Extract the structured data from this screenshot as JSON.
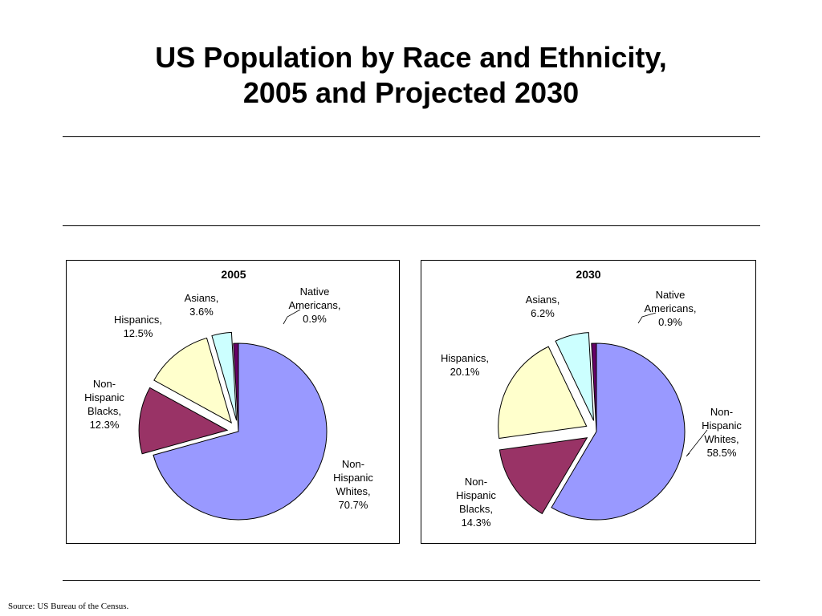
{
  "slide": {
    "title_line1": "US Population by Race and Ethnicity,",
    "title_line2": "2005 and Projected 2030",
    "source": "Source: US Bureau of the Census."
  },
  "chart_data": [
    {
      "type": "pie",
      "title": "2005",
      "slices": [
        {
          "label": [
            "Non-",
            "Hispanic",
            "Whites,",
            "70.7%"
          ],
          "value": 70.7,
          "color": "#9999ff"
        },
        {
          "label": [
            "Non-",
            "Hispanic",
            "Blacks,",
            "12.3%"
          ],
          "value": 12.3,
          "color": "#993366"
        },
        {
          "label": [
            "Hispanics,",
            "12.5%"
          ],
          "value": 12.5,
          "color": "#ffffcc"
        },
        {
          "label": [
            "Asians,",
            "3.6%"
          ],
          "value": 3.6,
          "color": "#ccffff"
        },
        {
          "label": [
            "Native",
            "Americans,",
            "0.9%"
          ],
          "value": 0.9,
          "color": "#660066"
        }
      ],
      "exploded": true,
      "legend": "none"
    },
    {
      "type": "pie",
      "title": "2030",
      "slices": [
        {
          "label": [
            "Non-",
            "Hispanic",
            "Whites,",
            "58.5%"
          ],
          "value": 58.5,
          "color": "#9999ff"
        },
        {
          "label": [
            "Non-",
            "Hispanic",
            "Blacks,",
            "14.3%"
          ],
          "value": 14.3,
          "color": "#993366"
        },
        {
          "label": [
            "Hispanics,",
            "20.1%"
          ],
          "value": 20.1,
          "color": "#ffffcc"
        },
        {
          "label": [
            "Asians,",
            "6.2%"
          ],
          "value": 6.2,
          "color": "#ccffff"
        },
        {
          "label": [
            "Native",
            "Americans,",
            "0.9%"
          ],
          "value": 0.9,
          "color": "#660066"
        }
      ],
      "exploded": true,
      "legend": "none"
    }
  ]
}
